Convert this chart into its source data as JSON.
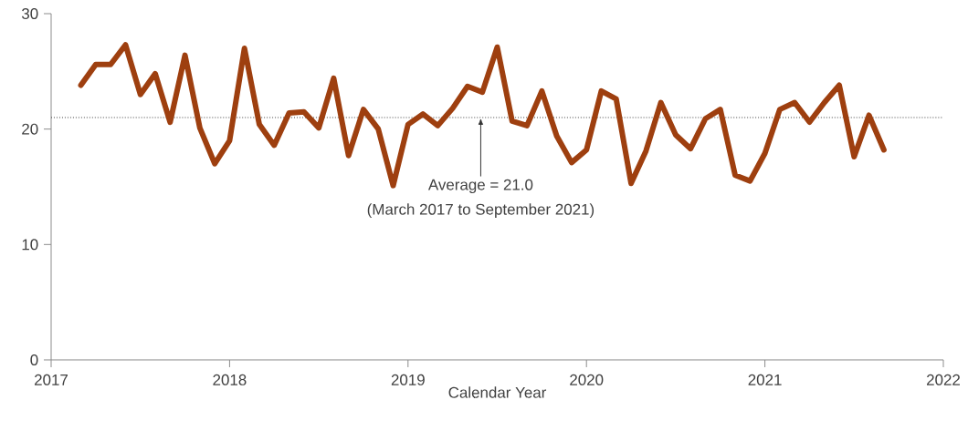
{
  "chart_data": {
    "type": "line",
    "xlabel": "Calendar Year",
    "x": [
      "2017-03",
      "2017-04",
      "2017-05",
      "2017-06",
      "2017-07",
      "2017-08",
      "2017-09",
      "2017-10",
      "2017-11",
      "2017-12",
      "2018-01",
      "2018-02",
      "2018-03",
      "2018-04",
      "2018-05",
      "2018-06",
      "2018-07",
      "2018-08",
      "2018-09",
      "2018-10",
      "2018-11",
      "2018-12",
      "2019-01",
      "2019-02",
      "2019-03",
      "2019-04",
      "2019-05",
      "2019-06",
      "2019-07",
      "2019-08",
      "2019-09",
      "2019-10",
      "2019-11",
      "2019-12",
      "2020-01",
      "2020-02",
      "2020-03",
      "2020-04",
      "2020-05",
      "2020-06",
      "2020-07",
      "2020-08",
      "2020-09",
      "2020-10",
      "2020-11",
      "2020-12",
      "2021-01",
      "2021-02",
      "2021-03",
      "2021-04",
      "2021-05",
      "2021-06",
      "2021-07",
      "2021-08",
      "2021-09"
    ],
    "series": [
      {
        "color": "#9e3f0f",
        "values": [
          23.8,
          25.6,
          25.6,
          27.3,
          23.0,
          24.8,
          20.6,
          26.4,
          20.1,
          17.0,
          19.0,
          27.0,
          20.4,
          18.6,
          21.4,
          21.5,
          20.1,
          24.4,
          17.7,
          21.7,
          20.0,
          15.1,
          20.4,
          21.3,
          20.3,
          21.8,
          23.7,
          23.2,
          27.1,
          20.7,
          20.3,
          23.3,
          19.4,
          17.1,
          18.2,
          23.3,
          22.6,
          15.3,
          18.1,
          22.3,
          19.5,
          18.3,
          20.9,
          21.7,
          16.0,
          15.5,
          17.9,
          21.7,
          22.3,
          20.6,
          22.3,
          23.8,
          17.6,
          21.2,
          18.2
        ]
      }
    ],
    "xlim": [
      "2017",
      "2022"
    ],
    "xticks": [
      "2017",
      "2018",
      "2019",
      "2020",
      "2021",
      "2022"
    ],
    "ylim": [
      0,
      30
    ],
    "yticks": [
      0,
      10,
      20,
      30
    ],
    "ref_lines": [
      {
        "axis": "y",
        "value": 21.0,
        "label": "Average = 21.0",
        "color": "#404040",
        "line_style": "dotted"
      }
    ],
    "annotations": [
      "(March 2017 to September 2021)"
    ],
    "grid": false,
    "legend": false,
    "marker": "none",
    "line_style": "solid"
  }
}
